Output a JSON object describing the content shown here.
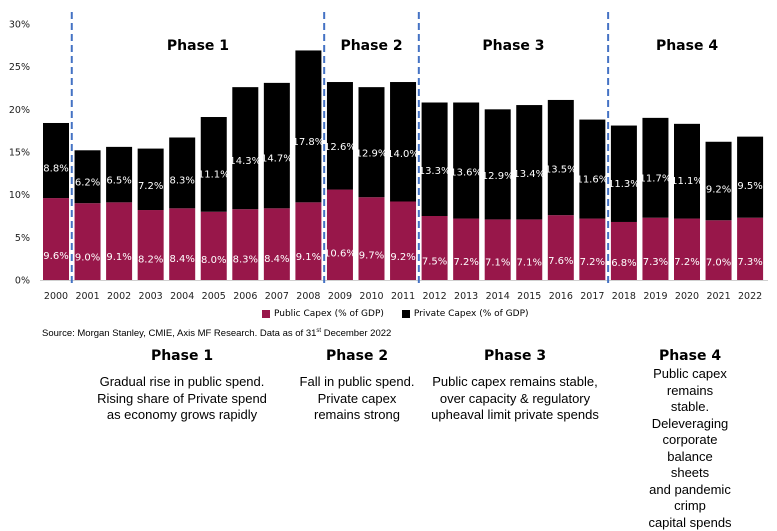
{
  "chart_data": {
    "type": "bar",
    "stacked": true,
    "categories": [
      "2000",
      "2001",
      "2002",
      "2003",
      "2004",
      "2005",
      "2006",
      "2007",
      "2008",
      "2009",
      "2010",
      "2011",
      "2012",
      "2013",
      "2014",
      "2015",
      "2016",
      "2017",
      "2018",
      "2019",
      "2020",
      "2021",
      "2022"
    ],
    "series": [
      {
        "name": "Public Capex (% of GDP)",
        "color": "#98174a",
        "values": [
          9.6,
          9.0,
          9.1,
          8.2,
          8.4,
          8.0,
          8.3,
          8.4,
          9.1,
          10.6,
          9.7,
          9.2,
          7.5,
          7.2,
          7.1,
          7.1,
          7.6,
          7.2,
          6.8,
          7.3,
          7.2,
          7.0,
          7.3
        ]
      },
      {
        "name": "Private Capex (% of GDP)",
        "color": "#000000",
        "values": [
          8.8,
          6.2,
          6.5,
          7.2,
          8.3,
          11.1,
          14.3,
          14.7,
          17.8,
          12.6,
          12.9,
          14.0,
          13.3,
          13.6,
          12.9,
          13.4,
          13.5,
          11.6,
          11.3,
          11.7,
          11.1,
          9.2,
          9.5
        ]
      }
    ],
    "yticks": [
      "0%",
      "5%",
      "10%",
      "15%",
      "20%",
      "25%",
      "30%"
    ],
    "ylim": [
      0,
      30
    ],
    "legend": "bottom",
    "phases": [
      {
        "label": "Phase 1",
        "from": "2001",
        "to": "2008"
      },
      {
        "label": "Phase 2",
        "from": "2009",
        "to": "2011"
      },
      {
        "label": "Phase 3",
        "from": "2012",
        "to": "2017"
      },
      {
        "label": "Phase 4",
        "from": "2018",
        "to": "2022"
      }
    ],
    "divider_color": "#4472c4"
  },
  "source": {
    "text": "Source: Morgan Stanley, CMIE, Axis MF Research. Data as of 31",
    "sup": "st",
    "tail": " December 2022"
  },
  "phase_notes": [
    {
      "title": "Phase 1",
      "desc": "Gradual rise in public spend.\nRising share of Private spend\nas economy grows rapidly"
    },
    {
      "title": "Phase 2",
      "desc": "Fall in public spend.\nPrivate capex\nremains strong"
    },
    {
      "title": "Phase 3",
      "desc": "Public capex remains stable,\nover capacity & regulatory\nupheaval limit private spends"
    },
    {
      "title": "Phase 4",
      "desc": "Public capex remains\nstable. Deleveraging\ncorporate balance sheets\nand pandemic crimp\ncapital spends"
    }
  ]
}
